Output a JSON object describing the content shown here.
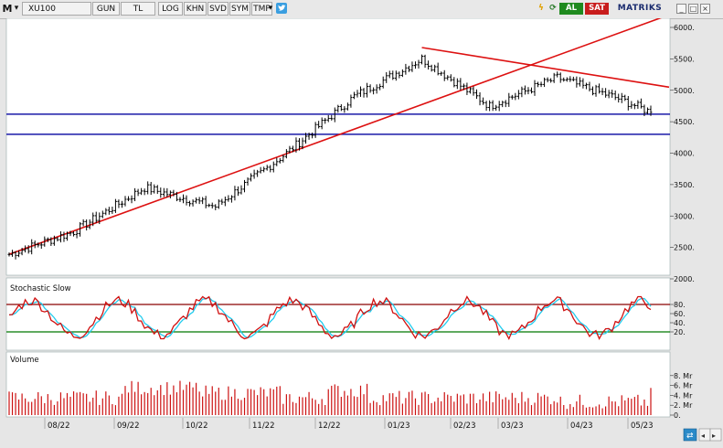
{
  "toolbar": {
    "logo": "M",
    "symbol": "XU100",
    "period": "GUN",
    "currency": "TL",
    "buttons": [
      "LOG",
      "KHN",
      "SVD",
      "SYM",
      "TMP"
    ],
    "buy_label": "AL",
    "sell_label": "SAT",
    "brand": "MATRIKS"
  },
  "colors": {
    "price": "#000000",
    "trendline": "#dd1111",
    "support": "#1a1aa8",
    "stoch_k": "#d01010",
    "stoch_d": "#22ccee",
    "stoch_high": "#8b0000",
    "stoch_low": "#007700",
    "volume": "#cc1111",
    "buy": "#1f8a1f",
    "sell": "#c81d1d"
  },
  "chart_data": [
    {
      "type": "line",
      "title": "",
      "y_axis_ticks": [
        "6000.",
        "5500.",
        "5000.",
        "4500.",
        "4000.",
        "3500.",
        "3000.",
        "2500.",
        "2000."
      ],
      "ylim": [
        2000,
        6200
      ],
      "x_axis_ticks": [
        "08/22",
        "09/22",
        "10/22",
        "11/22",
        "12/22",
        "01/23",
        "02/23",
        "03/23",
        "04/23",
        "05/23"
      ],
      "series": [
        {
          "months": [
            "07/22",
            "08/22",
            "09/22",
            "10/22",
            "11/22",
            "12/22",
            "01/23",
            "02/23",
            "03/23",
            "04/23",
            "05/23"
          ],
          "values": [
            2390,
            2750,
            3450,
            3150,
            4000,
            4900,
            5500,
            4750,
            5200,
            4850,
            4650
          ]
        }
      ],
      "horizontal_lines": [
        4620,
        4300
      ],
      "trendlines": [
        {
          "from": [
            "07/22",
            2390
          ],
          "to": [
            "05/23",
            6200
          ]
        },
        {
          "from": [
            "01/23",
            5680
          ],
          "to": [
            "05/23",
            5050
          ]
        }
      ]
    },
    {
      "type": "line",
      "title": "Stochastic Slow",
      "y_axis_ticks": [
        "80.",
        "60.",
        "40.",
        "20."
      ],
      "ylim": [
        0,
        100
      ],
      "levels": [
        80,
        20
      ]
    },
    {
      "type": "bar",
      "title": "Volume",
      "y_axis_ticks": [
        "8. Mr",
        "6. Mr",
        "4. Mr",
        "2. Mr",
        "0."
      ],
      "ylim": [
        0,
        9
      ]
    }
  ]
}
